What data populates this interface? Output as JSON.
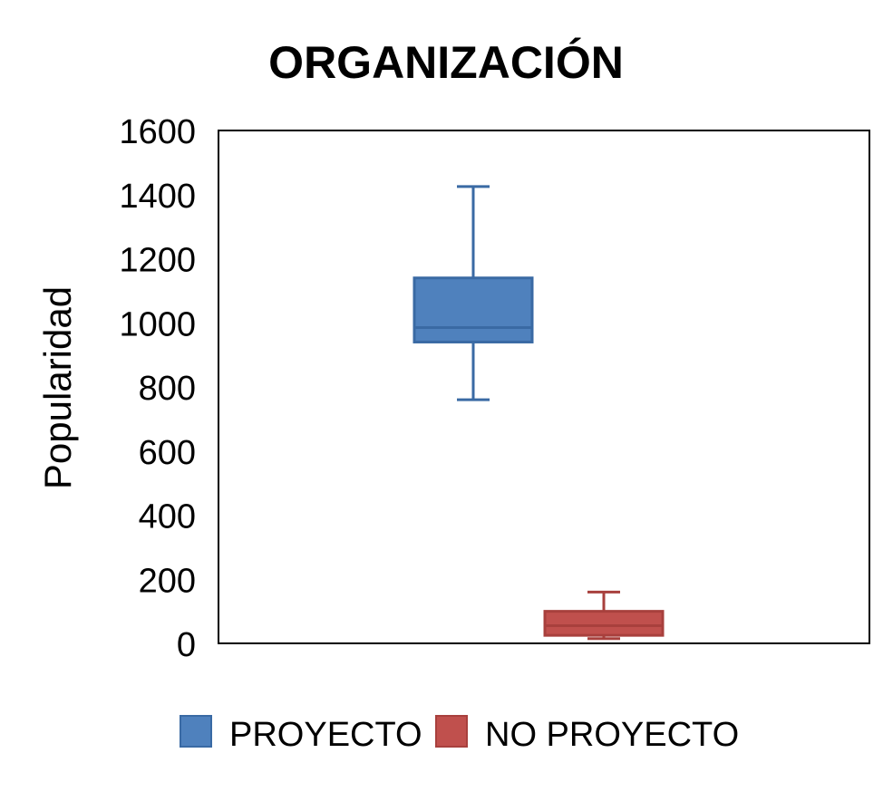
{
  "chart_data": {
    "type": "box",
    "title": "ORGANIZACIÓN",
    "ylabel": "Popularidad",
    "ylim": [
      0,
      1600
    ],
    "yticks": [
      0,
      200,
      400,
      600,
      800,
      1000,
      1200,
      1400,
      1600
    ],
    "grid": false,
    "legend": "bottom",
    "series": [
      {
        "name": "PROYECTO",
        "color": "#4f81bd",
        "stroke": "#3a6aa4",
        "min": 760,
        "q1": 940,
        "median": 985,
        "q3": 1140,
        "max": 1425
      },
      {
        "name": "NO PROYECTO",
        "color": "#c0504d",
        "stroke": "#a8403d",
        "min": 15,
        "q1": 25,
        "median": 55,
        "q3": 100,
        "max": 160
      }
    ]
  }
}
